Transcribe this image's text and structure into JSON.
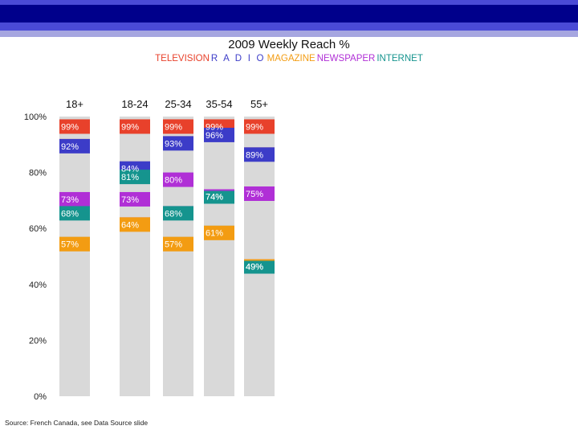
{
  "page": {
    "band_colors": [
      "#4a4ad6",
      "#00008b",
      "#4a4ad6",
      "#a6a6e0"
    ]
  },
  "chart_data": {
    "type": "bar",
    "title": "2009 Weekly Reach %",
    "categories": [
      "18+",
      "18-24",
      "25-34",
      "35-54",
      "55+"
    ],
    "legend_position": "top",
    "ylim": [
      0,
      100
    ],
    "yticks": [
      0,
      20,
      40,
      60,
      80,
      100
    ],
    "ytick_labels": [
      "0%",
      "20%",
      "40%",
      "60%",
      "80%",
      "100%"
    ],
    "series": [
      {
        "name": "TELEVISION",
        "color": "#e8412b",
        "values": [
          99,
          99,
          99,
          99,
          99
        ]
      },
      {
        "name": "R A D I O",
        "color": "#3c3cc8",
        "values": [
          92,
          84,
          93,
          96,
          89
        ]
      },
      {
        "name": "MAGAZINE",
        "color": "#f39c12",
        "values": [
          57,
          64,
          57,
          61,
          49
        ]
      },
      {
        "name": "NEWSPAPER",
        "color": "#b02fd6",
        "values": [
          73,
          73,
          80,
          74,
          75
        ]
      },
      {
        "name": "INTERNET",
        "color": "#15948e",
        "values": [
          68,
          81,
          68,
          74,
          49
        ]
      }
    ],
    "bar_background": "#d9d9d9",
    "source": "Source: French Canada, see Data Source slide"
  }
}
